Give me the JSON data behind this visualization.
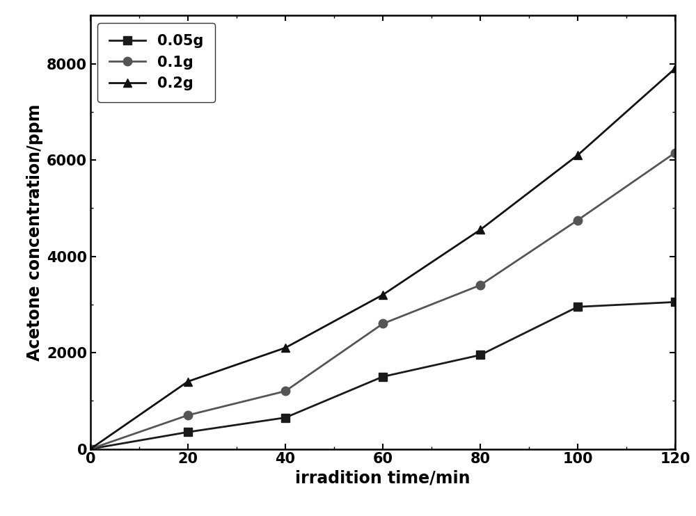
{
  "x": [
    0,
    20,
    40,
    60,
    80,
    100,
    120
  ],
  "series": [
    {
      "label": "0.05g",
      "y": [
        0,
        350,
        650,
        1500,
        1950,
        2950,
        3050
      ],
      "marker": "s",
      "color": "#1a1a1a",
      "linestyle": "-"
    },
    {
      "label": "0.1g",
      "y": [
        0,
        700,
        1200,
        2600,
        3400,
        4750,
        6150
      ],
      "marker": "o",
      "color": "#555555",
      "linestyle": "-"
    },
    {
      "label": "0.2g",
      "y": [
        0,
        1400,
        2100,
        3200,
        4550,
        6100,
        7900
      ],
      "marker": "^",
      "color": "#111111",
      "linestyle": "-"
    }
  ],
  "xlabel": "irradition time/min",
  "ylabel": "Acetone concentration/ppm",
  "xlim": [
    0,
    120
  ],
  "ylim": [
    0,
    9000
  ],
  "xticks": [
    0,
    20,
    40,
    60,
    80,
    100,
    120
  ],
  "yticks": [
    0,
    2000,
    4000,
    6000,
    8000
  ],
  "legend_loc": "upper left",
  "background_color": "#ffffff",
  "linewidth": 2.0,
  "markersize": 9,
  "label_fontsize": 17,
  "tick_fontsize": 15,
  "legend_fontsize": 15
}
